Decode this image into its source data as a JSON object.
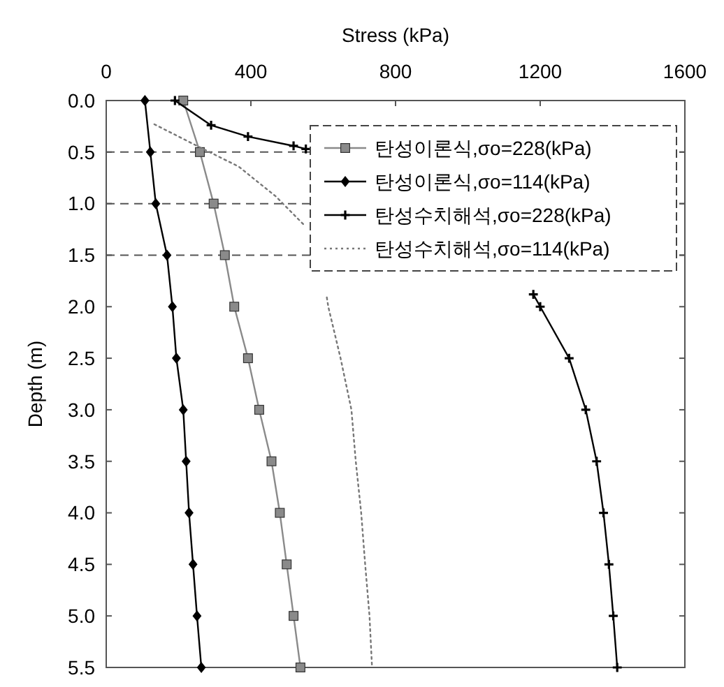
{
  "chart_data": {
    "type": "line",
    "xlabel": "Stress (kPa)",
    "ylabel": "Depth (m)",
    "xlim": [
      0,
      1600
    ],
    "xticks": [
      0,
      400,
      800,
      1200,
      1600
    ],
    "ylim": [
      5.5,
      0
    ],
    "yticks": [
      {
        "value": 0,
        "label": "0.0"
      },
      0.5,
      {
        "value": 1,
        "label": "1.0"
      },
      1.5,
      {
        "value": 2,
        "label": "2.0"
      },
      2.5,
      {
        "value": 3,
        "label": "3.0"
      },
      3.5,
      {
        "value": 4,
        "label": "4.0"
      },
      4.5,
      {
        "value": 5,
        "label": "5.0"
      },
      5.5
    ],
    "grid": false,
    "legend": "top right",
    "ref_lines": [
      {
        "axis": "y",
        "value": 0.5,
        "color": "#555555",
        "line_style": "dashed"
      },
      {
        "axis": "y",
        "value": 1,
        "color": "#555555",
        "line_style": "dashed"
      },
      {
        "axis": "y",
        "value": 1.5,
        "color": "#555555",
        "line_style": "dashed"
      }
    ],
    "series": [
      {
        "name": "탄성이론식,σo=228(kPa)",
        "color": "#8a8a8a",
        "marker": "square",
        "line_style": "solid",
        "x": [
          213,
          259,
          297,
          328,
          354,
          392,
          423,
          457,
          480,
          499,
          518,
          537
        ],
        "values": [
          0,
          0.5,
          1,
          1.5,
          2,
          2.5,
          3,
          3.5,
          4,
          4.5,
          5,
          5.5
        ]
      },
      {
        "name": "탄성이론식,σo=114(kPa)",
        "color": "#000000",
        "marker": "diamond",
        "line_style": "solid",
        "x": [
          107,
          122,
          137,
          168,
          183,
          194,
          213,
          221,
          229,
          240,
          251,
          263
        ],
        "values": [
          0,
          0.5,
          1,
          1.5,
          2,
          2.5,
          3,
          3.5,
          4,
          4.5,
          5,
          5.5
        ]
      },
      {
        "name": "탄성수치해석,σo=228(kPa)",
        "color": "#000000",
        "marker": "cross",
        "line_style": "solid",
        "x": [
          190,
          290,
          392,
          518,
          552,
          null,
          1181,
          1200,
          1280,
          1326,
          1356,
          1375,
          1390,
          1402,
          1413
        ],
        "values": [
          0,
          0.24,
          0.35,
          0.44,
          0.47,
          null,
          1.88,
          2,
          2.5,
          3,
          3.5,
          4,
          4.5,
          5,
          5.5
        ]
      },
      {
        "name": "탄성수치해석,σo=114(kPa)",
        "color": "#777777",
        "marker": "none",
        "line_style": "dotted",
        "x": [
          133,
          251,
          366,
          469,
          545,
          null,
          610,
          614,
          648,
          678,
          690,
          705,
          716,
          728,
          735
        ],
        "values": [
          0.23,
          0.44,
          0.64,
          0.93,
          1.2,
          null,
          1.91,
          2,
          2.5,
          3,
          3.5,
          4,
          4.5,
          5,
          5.5
        ]
      }
    ]
  }
}
